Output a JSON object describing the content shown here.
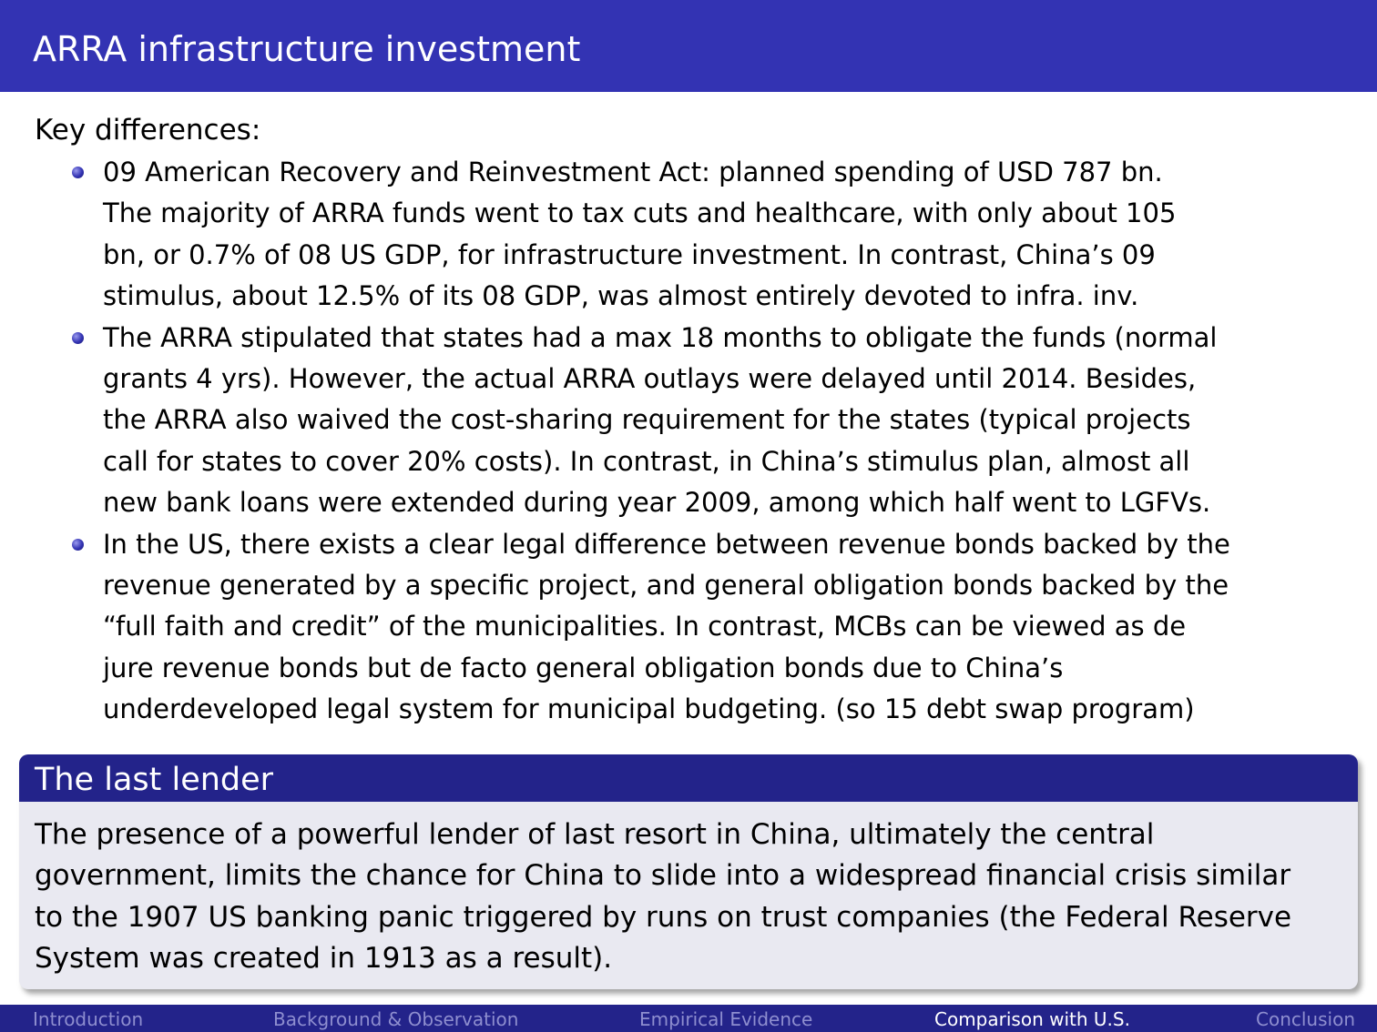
{
  "slide": {
    "title": "ARRA infrastructure investment",
    "intro": "Key differences:"
  },
  "bullets": [
    {
      "lines": [
        "09 American Recovery and Reinvestment Act: planned spending of USD 787 bn.",
        "The majority of ARRA funds went to tax cuts and healthcare, with only about 105",
        "bn, or 0.7% of 08 US GDP, for infrastructure investment. In contrast, China’s 09",
        "stimulus, about 12.5% of its 08 GDP, was almost entirely devoted to infra. inv."
      ]
    },
    {
      "lines": [
        "The ARRA stipulated that states had a max 18 months to obligate the funds (normal",
        "grants 4 yrs). However, the actual ARRA outlays were delayed until 2014. Besides,",
        "the ARRA also waived the cost-sharing requirement for the states (typical projects",
        "call for states to cover 20% costs). In contrast, in China’s stimulus plan, almost all",
        "new bank loans were extended during year 2009, among which half went to LGFVs."
      ]
    },
    {
      "lines": [
        "In the US, there exists a clear legal difference between revenue bonds backed by the",
        "revenue generated by a specific project, and general obligation bonds backed by the",
        "“full faith and credit” of the municipalities. In contrast, MCBs can be viewed as de",
        "jure revenue bonds but de facto general obligation bonds due to China’s",
        "underdeveloped legal system for municipal budgeting. (so 15 debt swap program)"
      ]
    }
  ],
  "block": {
    "title": "The last lender",
    "lines": [
      "The presence of a powerful lender of last resort in China, ultimately the central",
      "government, limits the chance for China to slide into a widespread financial crisis similar",
      "to the 1907 US banking panic triggered by runs on trust companies (the Federal Reserve",
      "System was created in 1913 as a result)."
    ]
  },
  "footer_nav": [
    {
      "label": "Introduction",
      "active": false
    },
    {
      "label": "Background & Observation",
      "active": false
    },
    {
      "label": "Empirical Evidence",
      "active": false
    },
    {
      "label": "Comparison with U.S.",
      "active": true
    },
    {
      "label": "Conclusion",
      "active": false
    }
  ],
  "colors": {
    "title_bar": "#3333b3",
    "block_header": "#23238a",
    "block_body": "#e9e9f1",
    "footer": "#23238a",
    "nav_inactive": "#8e8ecf",
    "nav_active": "#ffffff"
  }
}
